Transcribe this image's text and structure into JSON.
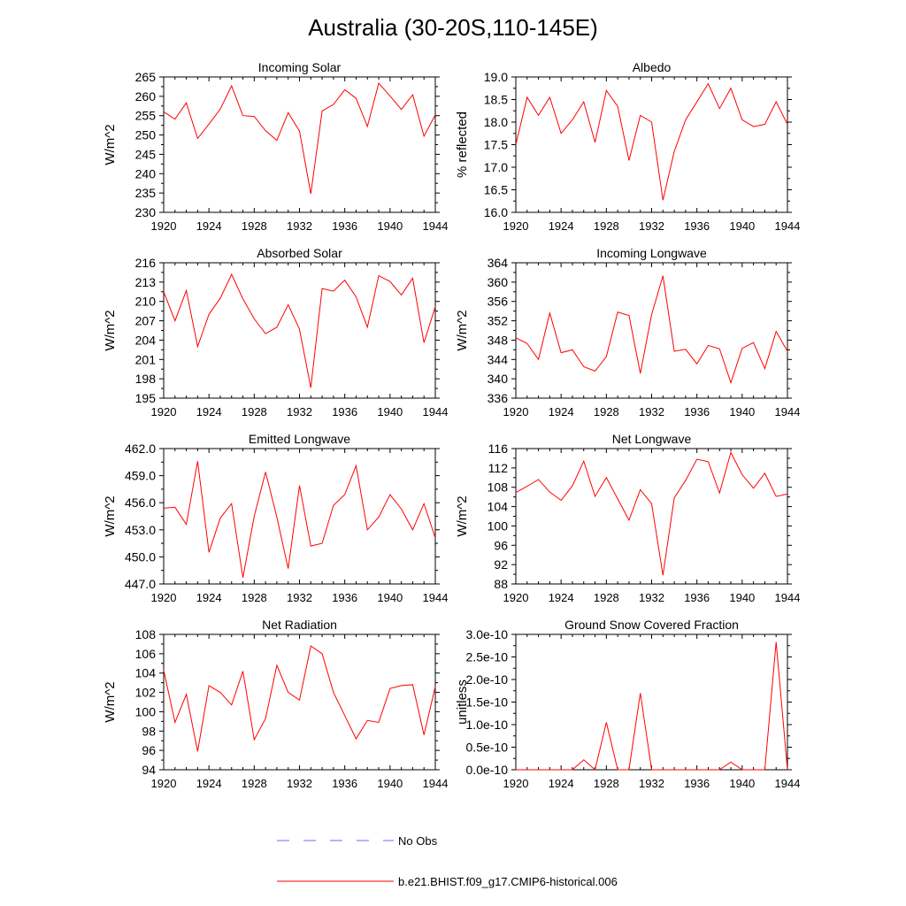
{
  "title": "Australia (30-20S,110-145E)",
  "colors": {
    "model": "#ff0000",
    "obs": "#6a6aff",
    "axis": "#000000"
  },
  "legend": [
    {
      "label": "No Obs",
      "style": "dashed",
      "color": "#6a6aff"
    },
    {
      "label": "b.e21.BHIST.f09_g17.CMIP6-historical.006",
      "style": "solid",
      "color": "#ff0000"
    }
  ],
  "chart_data": [
    {
      "type": "line",
      "title": "Incoming Solar",
      "ylabel": "W/m^2",
      "xlabel": "",
      "xlim": [
        1920,
        1944
      ],
      "ylim": [
        230,
        265
      ],
      "xticks": [
        1920,
        1924,
        1928,
        1932,
        1936,
        1940,
        1944
      ],
      "yticks": [
        230,
        235,
        240,
        245,
        250,
        255,
        260,
        265
      ],
      "ytick_labels": [
        "230",
        "235",
        "240",
        "245",
        "250",
        "255",
        "260",
        "265"
      ],
      "x": [
        1920,
        1921,
        1922,
        1923,
        1924,
        1925,
        1926,
        1927,
        1928,
        1929,
        1930,
        1931,
        1932,
        1933,
        1934,
        1935,
        1936,
        1937,
        1938,
        1939,
        1940,
        1941,
        1942,
        1943,
        1944
      ],
      "series": [
        {
          "name": "b.e21.BHIST.f09_g17.CMIP6-historical.006",
          "values": [
            256.0,
            254.1,
            258.3,
            249.1,
            252.8,
            256.7,
            262.7,
            255.0,
            254.8,
            251.1,
            248.6,
            255.8,
            251.0,
            234.8,
            256.2,
            257.9,
            261.7,
            259.5,
            252.2,
            263.4,
            260.1,
            256.6,
            260.4,
            249.7,
            255.2
          ]
        }
      ]
    },
    {
      "type": "line",
      "title": "Albedo",
      "ylabel": "% reflected",
      "xlabel": "",
      "xlim": [
        1920,
        1944
      ],
      "ylim": [
        16.0,
        19.0
      ],
      "xticks": [
        1920,
        1924,
        1928,
        1932,
        1936,
        1940,
        1944
      ],
      "yticks": [
        16.0,
        16.5,
        17.0,
        17.5,
        18.0,
        18.5,
        19.0
      ],
      "ytick_labels": [
        "16.0",
        "16.5",
        "17.0",
        "17.5",
        "18.0",
        "18.5",
        "19.0"
      ],
      "x": [
        1920,
        1921,
        1922,
        1923,
        1924,
        1925,
        1926,
        1927,
        1928,
        1929,
        1930,
        1931,
        1932,
        1933,
        1934,
        1935,
        1936,
        1937,
        1938,
        1939,
        1940,
        1941,
        1942,
        1943,
        1944
      ],
      "series": [
        {
          "name": "b.e21.BHIST.f09_g17.CMIP6-historical.006",
          "values": [
            17.5,
            18.55,
            18.15,
            18.55,
            17.75,
            18.05,
            18.45,
            17.55,
            18.7,
            18.35,
            17.15,
            18.15,
            18.0,
            16.27,
            17.35,
            18.05,
            18.45,
            18.85,
            18.3,
            18.75,
            18.05,
            17.9,
            17.95,
            18.45,
            17.95
          ]
        }
      ]
    },
    {
      "type": "line",
      "title": "Absorbed Solar",
      "ylabel": "W/m^2",
      "xlabel": "",
      "xlim": [
        1920,
        1944
      ],
      "ylim": [
        195,
        216
      ],
      "xticks": [
        1920,
        1924,
        1928,
        1932,
        1936,
        1940,
        1944
      ],
      "yticks": [
        195,
        198,
        201,
        204,
        207,
        210,
        213,
        216
      ],
      "ytick_labels": [
        "195",
        "198",
        "201",
        "204",
        "207",
        "210",
        "213",
        "216"
      ],
      "x": [
        1920,
        1921,
        1922,
        1923,
        1924,
        1925,
        1926,
        1927,
        1928,
        1929,
        1930,
        1931,
        1932,
        1933,
        1934,
        1935,
        1936,
        1937,
        1938,
        1939,
        1940,
        1941,
        1942,
        1943,
        1944
      ],
      "series": [
        {
          "name": "b.e21.BHIST.f09_g17.CMIP6-historical.006",
          "values": [
            211.5,
            207.0,
            211.7,
            203.0,
            208.0,
            210.5,
            214.2,
            210.4,
            207.3,
            205.0,
            206.0,
            209.5,
            205.7,
            196.6,
            212.0,
            211.6,
            213.3,
            210.7,
            206.0,
            214.0,
            213.1,
            211.0,
            213.6,
            203.6,
            209.2
          ]
        }
      ]
    },
    {
      "type": "line",
      "title": "Incoming Longwave",
      "ylabel": "W/m^2",
      "xlabel": "",
      "xlim": [
        1920,
        1944
      ],
      "ylim": [
        336,
        364
      ],
      "xticks": [
        1920,
        1924,
        1928,
        1932,
        1936,
        1940,
        1944
      ],
      "yticks": [
        336,
        340,
        344,
        348,
        352,
        356,
        360,
        364
      ],
      "ytick_labels": [
        "336",
        "340",
        "344",
        "348",
        "352",
        "356",
        "360",
        "364"
      ],
      "x": [
        1920,
        1921,
        1922,
        1923,
        1924,
        1925,
        1926,
        1927,
        1928,
        1929,
        1930,
        1931,
        1932,
        1933,
        1934,
        1935,
        1936,
        1937,
        1938,
        1939,
        1940,
        1941,
        1942,
        1943,
        1944
      ],
      "series": [
        {
          "name": "b.e21.BHIST.f09_g17.CMIP6-historical.006",
          "values": [
            348.5,
            347.3,
            344.0,
            353.6,
            345.4,
            346.0,
            342.5,
            341.6,
            344.6,
            353.8,
            353.1,
            341.1,
            353.3,
            361.3,
            345.7,
            346.1,
            343.1,
            346.9,
            346.2,
            339.2,
            346.3,
            347.5,
            342.1,
            349.8,
            345.7
          ]
        }
      ]
    },
    {
      "type": "line",
      "title": "Emitted Longwave",
      "ylabel": "W/m^2",
      "xlabel": "",
      "xlim": [
        1920,
        1944
      ],
      "ylim": [
        447.0,
        462.0
      ],
      "xticks": [
        1920,
        1924,
        1928,
        1932,
        1936,
        1940,
        1944
      ],
      "yticks": [
        447.0,
        450.0,
        453.0,
        456.0,
        459.0,
        462.0
      ],
      "ytick_labels": [
        "447.0",
        "450.0",
        "453.0",
        "456.0",
        "459.0",
        "462.0"
      ],
      "x": [
        1920,
        1921,
        1922,
        1923,
        1924,
        1925,
        1926,
        1927,
        1928,
        1929,
        1930,
        1931,
        1932,
        1933,
        1934,
        1935,
        1936,
        1937,
        1938,
        1939,
        1940,
        1941,
        1942,
        1943,
        1944
      ],
      "series": [
        {
          "name": "b.e21.BHIST.f09_g17.CMIP6-historical.006",
          "values": [
            455.4,
            455.5,
            453.6,
            460.6,
            450.5,
            454.3,
            455.9,
            447.7,
            454.5,
            459.4,
            454.4,
            448.7,
            457.9,
            451.2,
            451.5,
            455.7,
            456.9,
            460.1,
            453.0,
            454.4,
            456.9,
            455.3,
            453.0,
            455.9,
            452.1
          ]
        }
      ]
    },
    {
      "type": "line",
      "title": "Net Longwave",
      "ylabel": "W/m^2",
      "xlabel": "",
      "xlim": [
        1920,
        1944
      ],
      "ylim": [
        88,
        116
      ],
      "xticks": [
        1920,
        1924,
        1928,
        1932,
        1936,
        1940,
        1944
      ],
      "yticks": [
        88,
        92,
        96,
        100,
        104,
        108,
        112,
        116
      ],
      "ytick_labels": [
        "88",
        "92",
        "96",
        "100",
        "104",
        "108",
        "112",
        "116"
      ],
      "x": [
        1920,
        1921,
        1922,
        1923,
        1924,
        1925,
        1926,
        1927,
        1928,
        1929,
        1930,
        1931,
        1932,
        1933,
        1934,
        1935,
        1936,
        1937,
        1938,
        1939,
        1940,
        1941,
        1942,
        1943,
        1944
      ],
      "series": [
        {
          "name": "b.e21.BHIST.f09_g17.CMIP6-historical.006",
          "values": [
            106.9,
            108.2,
            109.6,
            107.0,
            105.3,
            108.3,
            113.4,
            106.1,
            110.0,
            105.6,
            101.2,
            107.5,
            104.6,
            89.8,
            105.8,
            109.4,
            113.8,
            113.3,
            106.8,
            115.2,
            110.6,
            107.8,
            110.9,
            106.1,
            106.6
          ]
        }
      ]
    },
    {
      "type": "line",
      "title": "Net Radiation",
      "ylabel": "W/m^2",
      "xlabel": "",
      "xlim": [
        1920,
        1944
      ],
      "ylim": [
        94,
        108
      ],
      "xticks": [
        1920,
        1924,
        1928,
        1932,
        1936,
        1940,
        1944
      ],
      "yticks": [
        94,
        96,
        98,
        100,
        102,
        104,
        106,
        108
      ],
      "ytick_labels": [
        "94",
        "96",
        "98",
        "100",
        "102",
        "104",
        "106",
        "108"
      ],
      "x": [
        1920,
        1921,
        1922,
        1923,
        1924,
        1925,
        1926,
        1927,
        1928,
        1929,
        1930,
        1931,
        1932,
        1933,
        1934,
        1935,
        1936,
        1937,
        1938,
        1939,
        1940,
        1941,
        1942,
        1943,
        1944
      ],
      "series": [
        {
          "name": "b.e21.BHIST.f09_g17.CMIP6-historical.006",
          "values": [
            104.3,
            98.9,
            101.8,
            95.9,
            102.7,
            102.0,
            100.7,
            104.2,
            97.1,
            99.3,
            104.8,
            102.0,
            101.2,
            106.8,
            106.0,
            102.0,
            99.6,
            97.2,
            99.1,
            98.9,
            102.4,
            102.7,
            102.8,
            97.6,
            102.6
          ]
        }
      ]
    },
    {
      "type": "line",
      "title": "Ground Snow Covered Fraction",
      "ylabel": "unitless",
      "xlabel": "",
      "xlim": [
        1920,
        1944
      ],
      "ylim": [
        0,
        3e-10
      ],
      "xticks": [
        1920,
        1924,
        1928,
        1932,
        1936,
        1940,
        1944
      ],
      "yticks": [
        0,
        5e-11,
        1e-10,
        1.5e-10,
        2e-10,
        2.5e-10,
        3e-10
      ],
      "ytick_labels": [
        "0.0e-10",
        "0.5e-10",
        "1.0e-10",
        "1.5e-10",
        "2.0e-10",
        "2.5e-10",
        "3.0e-10"
      ],
      "x": [
        1920,
        1921,
        1922,
        1923,
        1924,
        1925,
        1926,
        1927,
        1928,
        1929,
        1930,
        1931,
        1932,
        1933,
        1934,
        1935,
        1936,
        1937,
        1938,
        1939,
        1940,
        1941,
        1942,
        1943,
        1944
      ],
      "series": [
        {
          "name": "b.e21.BHIST.f09_g17.CMIP6-historical.006",
          "values": [
            0,
            0,
            0,
            0,
            0,
            0,
            2.2e-11,
            0,
            1.05e-10,
            0,
            0,
            1.7e-10,
            0,
            0,
            0,
            0,
            0,
            0,
            0,
            1.7e-11,
            0,
            0,
            0,
            2.83e-10,
            0
          ]
        }
      ]
    }
  ]
}
